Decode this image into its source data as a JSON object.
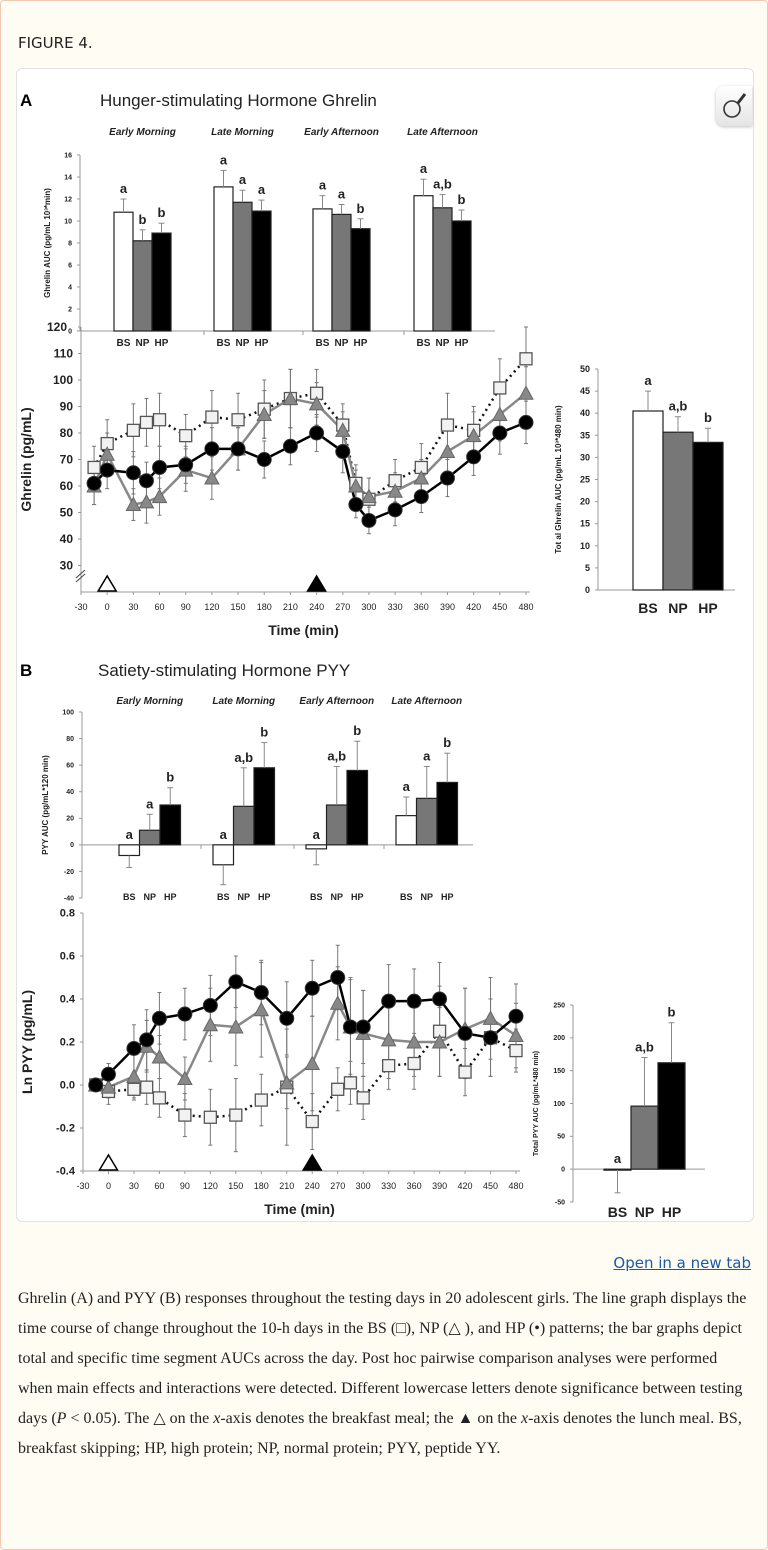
{
  "figure_label": "FIGURE 4.",
  "open_link": "Open in a new tab",
  "zoom_icon": "magnifier-icon",
  "caption": {
    "p1": "Ghrelin (A) and PYY (B) responses throughout the testing days in 20 adolescent girls. The line graph displays the time course of change throughout the 10-h days in the BS (□), NP (△ ), and HP (•) patterns; the bar graphs depict total and specific time segment AUCs across the day. Post hoc pairwise comparison analyses were performed when main effects and interactions were detected. Different lowercase letters denote significance between testing days (",
    "p_italic": "P",
    "p2": " < 0.05). The △ on the ",
    "x1": "x",
    "p3": "-axis denotes the breakfast meal; the ▲ on the ",
    "x2": "x",
    "p4": "-axis denotes the lunch meal. BS, breakfast skipping; HP, high protein; NP, normal protein; PYY, peptide YY."
  },
  "colors": {
    "BS": "#ffffff",
    "NP": "#777777",
    "HP": "#000000"
  },
  "panels": {
    "A": {
      "letter": "A",
      "title": "Hunger-stimulating Hormone Ghrelin"
    },
    "B": {
      "letter": "B",
      "title": "Satiety-stimulating Hormone PYY"
    }
  },
  "chart_data": [
    {
      "id": "ghrelin_segments",
      "type": "bar",
      "ylabel": "Ghrelin AUC (pg/mL 10³*min)",
      "ylim": [
        0,
        16
      ],
      "yticks": [
        0,
        2,
        4,
        6,
        8,
        10,
        12,
        14,
        16
      ],
      "categories": [
        "BS",
        "NP",
        "HP"
      ],
      "groups": [
        {
          "label": "Early Morning",
          "values": [
            10.8,
            8.2,
            8.9
          ],
          "errors": [
            1.2,
            1.0,
            0.9
          ],
          "letters": [
            "a",
            "b",
            "b"
          ]
        },
        {
          "label": "Late Morning",
          "values": [
            13.1,
            11.7,
            10.9
          ],
          "errors": [
            1.5,
            1.1,
            1.0
          ],
          "letters": [
            "a",
            "a",
            "a"
          ]
        },
        {
          "label": "Early Afternoon",
          "values": [
            11.1,
            10.6,
            9.3
          ],
          "errors": [
            1.2,
            0.9,
            0.9
          ],
          "letters": [
            "a",
            "a",
            "b"
          ]
        },
        {
          "label": "Late Afternoon",
          "values": [
            12.3,
            11.2,
            10.0
          ],
          "errors": [
            1.5,
            1.2,
            1.0
          ],
          "letters": [
            "a",
            "a,b",
            "b"
          ]
        }
      ]
    },
    {
      "id": "ghrelin_time",
      "type": "line",
      "xlabel": "Time (min)",
      "ylabel": "Ghrelin (pg/mL)",
      "xlim": [
        -30,
        480
      ],
      "xticks": [
        -30,
        0,
        30,
        60,
        90,
        120,
        150,
        180,
        210,
        240,
        270,
        300,
        330,
        360,
        390,
        420,
        450,
        480
      ],
      "ylim": [
        20,
        120
      ],
      "yticks": [
        30,
        40,
        50,
        60,
        70,
        80,
        90,
        100,
        110,
        120
      ],
      "axis_break": true,
      "x": [
        -15,
        0,
        30,
        45,
        60,
        90,
        120,
        150,
        180,
        210,
        240,
        270,
        285,
        300,
        330,
        360,
        390,
        420,
        450,
        480
      ],
      "meals": [
        {
          "name": "breakfast",
          "time": 0,
          "filled": false
        },
        {
          "name": "lunch",
          "time": 240,
          "filled": true
        }
      ],
      "series": [
        {
          "name": "BS",
          "marker": "square",
          "values": [
            67,
            76,
            81,
            84,
            85,
            79,
            86,
            85,
            89,
            93,
            95,
            83,
            61,
            55,
            62,
            67,
            83,
            81,
            97,
            108
          ],
          "errors": [
            8,
            9,
            10,
            9,
            10,
            8,
            10,
            10,
            11,
            11,
            9,
            8,
            7,
            8,
            8,
            9,
            12,
            9,
            11,
            12
          ]
        },
        {
          "name": "NP",
          "marker": "triangle",
          "values": [
            60,
            72,
            53,
            54,
            56,
            66,
            63,
            74,
            87,
            93,
            91,
            81,
            60,
            56,
            58,
            63,
            73,
            79,
            87,
            95
          ],
          "errors": [
            7,
            8,
            6,
            8,
            7,
            8,
            8,
            8,
            9,
            11,
            8,
            7,
            6,
            7,
            7,
            7,
            9,
            9,
            10,
            10
          ]
        },
        {
          "name": "HP",
          "marker": "circle",
          "values": [
            61,
            66,
            65,
            62,
            67,
            68,
            74,
            74,
            70,
            75,
            80,
            73,
            53,
            47,
            51,
            56,
            63,
            71,
            80,
            84
          ],
          "errors": [
            8,
            7,
            8,
            7,
            8,
            7,
            8,
            8,
            7,
            7,
            7,
            8,
            5,
            5,
            6,
            6,
            7,
            7,
            8,
            8
          ]
        }
      ]
    },
    {
      "id": "ghrelin_total",
      "type": "bar",
      "ylabel": "Tot al Ghrelin AUC (pg/mL 10³*480 min)",
      "ylim": [
        0,
        50
      ],
      "yticks": [
        0,
        5,
        10,
        15,
        20,
        25,
        30,
        35,
        40,
        45,
        50
      ],
      "categories": [
        "BS",
        "NP",
        "HP"
      ],
      "groups": [
        {
          "label": "",
          "values": [
            40.5,
            35.7,
            33.4
          ],
          "errors": [
            4.5,
            3.5,
            3.2
          ],
          "letters": [
            "a",
            "a,b",
            "b"
          ]
        }
      ]
    },
    {
      "id": "pyy_segments",
      "type": "bar",
      "ylabel": "PYY  AUC (pg/mL*120 min)",
      "ylim": [
        -40,
        100
      ],
      "yticks": [
        -40,
        -20,
        0,
        20,
        40,
        60,
        80,
        100
      ],
      "categories": [
        "BS",
        "NP",
        "HP"
      ],
      "groups": [
        {
          "label": "Early Morning",
          "values": [
            -8,
            11,
            30
          ],
          "errors": [
            9,
            12,
            13
          ],
          "letters": [
            "a",
            "a",
            "b"
          ]
        },
        {
          "label": "Late Morning",
          "values": [
            -15,
            29,
            58
          ],
          "errors": [
            15,
            29,
            19
          ],
          "letters": [
            "a",
            "a,b",
            "b"
          ]
        },
        {
          "label": "Early Afternoon",
          "values": [
            -3,
            30,
            56
          ],
          "errors": [
            12,
            29,
            22
          ],
          "letters": [
            "a",
            "a,b",
            "b"
          ]
        },
        {
          "label": "Late Afternoon",
          "values": [
            22,
            35,
            47
          ],
          "errors": [
            14,
            24,
            22
          ],
          "letters": [
            "a",
            "a",
            "b"
          ]
        }
      ]
    },
    {
      "id": "pyy_time",
      "type": "line",
      "xlabel": "Time (min)",
      "ylabel": "Ln PYY (pg/mL)",
      "xlim": [
        -30,
        480
      ],
      "xticks": [
        -30,
        0,
        30,
        60,
        90,
        120,
        150,
        180,
        210,
        240,
        270,
        300,
        330,
        360,
        390,
        420,
        450,
        480
      ],
      "ylim": [
        -0.4,
        0.8
      ],
      "yticks": [
        -0.4,
        -0.2,
        0.0,
        0.2,
        0.4,
        0.6,
        0.8
      ],
      "axis_break": false,
      "x": [
        -15,
        0,
        30,
        45,
        60,
        90,
        120,
        150,
        180,
        210,
        240,
        270,
        285,
        300,
        330,
        360,
        390,
        420,
        450,
        480
      ],
      "meals": [
        {
          "name": "breakfast",
          "time": 0,
          "filled": false
        },
        {
          "name": "lunch",
          "time": 240,
          "filled": true
        }
      ],
      "series": [
        {
          "name": "BS",
          "marker": "square",
          "values": [
            0,
            -0.03,
            -0.02,
            -0.01,
            -0.06,
            -0.14,
            -0.15,
            -0.14,
            -0.07,
            -0.01,
            -0.17,
            -0.02,
            0.01,
            -0.06,
            0.09,
            0.1,
            0.25,
            0.06,
            0.22,
            0.16
          ],
          "errors": [
            0.02,
            0.06,
            0.05,
            0.08,
            0.09,
            0.1,
            0.13,
            0.17,
            0.12,
            0.27,
            0.13,
            0.1,
            0.1,
            0.1,
            0.11,
            0.12,
            0.21,
            0.11,
            0.18,
            0.1
          ]
        },
        {
          "name": "NP",
          "marker": "triangle",
          "values": [
            0,
            -0.01,
            0.04,
            0.18,
            0.13,
            0.03,
            0.28,
            0.27,
            0.35,
            0.01,
            0.1,
            0.38,
            0.27,
            0.24,
            0.21,
            0.2,
            0.2,
            0.26,
            0.31,
            0.23
          ],
          "errors": [
            0.02,
            0.05,
            0.1,
            0.12,
            0.1,
            0.1,
            0.17,
            0.18,
            0.22,
            0.12,
            0.22,
            0.17,
            0.22,
            0.2,
            0.18,
            0.16,
            0.16,
            0.19,
            0.19,
            0.15
          ]
        },
        {
          "name": "HP",
          "marker": "circle",
          "values": [
            0,
            0.05,
            0.17,
            0.21,
            0.31,
            0.33,
            0.37,
            0.48,
            0.43,
            0.31,
            0.45,
            0.5,
            0.27,
            0.27,
            0.39,
            0.39,
            0.4,
            0.24,
            0.22,
            0.32
          ],
          "errors": [
            0.02,
            0.05,
            0.11,
            0.14,
            0.12,
            0.12,
            0.14,
            0.12,
            0.15,
            0.17,
            0.13,
            0.15,
            0.23,
            0.17,
            0.17,
            0.15,
            0.17,
            0.21,
            0.18,
            0.15
          ]
        }
      ]
    },
    {
      "id": "pyy_total",
      "type": "bar",
      "ylabel": "Total PYY  AUC (pg/mL*480 min)",
      "ylim": [
        -50,
        250
      ],
      "yticks": [
        -50,
        0,
        50,
        100,
        150,
        200,
        250
      ],
      "categories": [
        "BS",
        "NP",
        "HP"
      ],
      "groups": [
        {
          "label": "",
          "values": [
            -1,
            96,
            162
          ],
          "errors": [
            35,
            74,
            61
          ],
          "letters": [
            "a",
            "a,b",
            "b"
          ]
        }
      ]
    }
  ]
}
